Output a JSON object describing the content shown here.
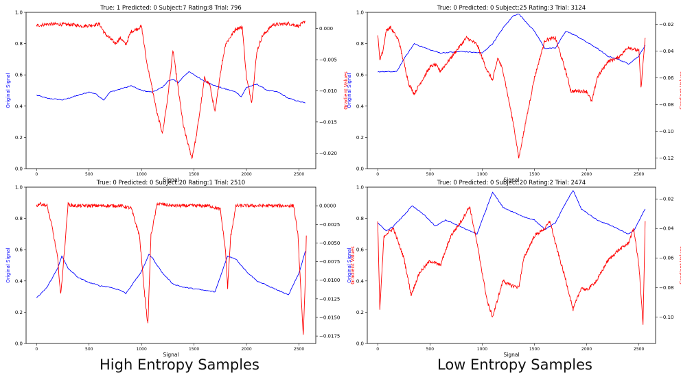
{
  "captions": {
    "left": "High Entropy Samples",
    "right": "Low Entropy Samples"
  },
  "colors": {
    "signal": "#0000ff",
    "gradient": "#ff0000",
    "axis": "#000000"
  },
  "chart_data": [
    {
      "type": "line",
      "title": "True: 1 Predicted: 0 Subject:7 Rating:8 Trial: 796",
      "xlabel": "Signal",
      "ylabel_left": "Original Signal",
      "ylabel_right": "Gradient Values",
      "xlim": [
        -100,
        2660
      ],
      "ylim_left": [
        0.0,
        1.0
      ],
      "ylim_right": [
        -0.0225,
        0.0026
      ],
      "xticks": [
        0,
        500,
        1000,
        1500,
        2000,
        2500
      ],
      "yticks_left": [
        0.0,
        0.2,
        0.4,
        0.6,
        0.8,
        1.0
      ],
      "yticks_left_labels": [
        "0.0",
        "0.2",
        "0.4",
        "0.6",
        "0.8",
        "1.0"
      ],
      "yticks_right": [
        0.0,
        -0.005,
        -0.01,
        -0.015,
        -0.02
      ],
      "yticks_right_labels": [
        "0.000",
        "−0.005",
        "−0.010",
        "−0.015",
        "−0.020"
      ],
      "series": [
        {
          "axis": "left",
          "x": [
            0,
            100,
            250,
            400,
            500,
            560,
            600,
            640,
            700,
            800,
            900,
            1000,
            1100,
            1200,
            1250,
            1300,
            1350,
            1400,
            1450,
            1500,
            1600,
            1700,
            1800,
            1900,
            1950,
            2000,
            2100,
            2200,
            2300,
            2400,
            2500,
            2560
          ],
          "y": [
            0.47,
            0.45,
            0.44,
            0.47,
            0.49,
            0.48,
            0.46,
            0.44,
            0.49,
            0.51,
            0.53,
            0.5,
            0.49,
            0.52,
            0.56,
            0.57,
            0.55,
            0.59,
            0.62,
            0.6,
            0.56,
            0.53,
            0.51,
            0.49,
            0.46,
            0.52,
            0.54,
            0.5,
            0.49,
            0.45,
            0.43,
            0.42
          ]
        },
        {
          "axis": "right",
          "x": [
            0,
            100,
            200,
            350,
            450,
            600,
            650,
            700,
            750,
            800,
            850,
            900,
            1000,
            1050,
            1100,
            1150,
            1200,
            1250,
            1300,
            1350,
            1400,
            1450,
            1480,
            1520,
            1600,
            1650,
            1700,
            1750,
            1800,
            1900,
            1960,
            2000,
            2050,
            2100,
            2150,
            2250,
            2400,
            2500,
            2540,
            2560
          ],
          "y": [
            0.0005,
            0.0007,
            0.0007,
            0.0006,
            0.0004,
            0.0007,
            -0.0008,
            -0.0016,
            -0.0024,
            -0.0015,
            -0.0026,
            -0.0005,
            0.0003,
            -0.0055,
            -0.0095,
            -0.0138,
            -0.0168,
            -0.011,
            -0.0035,
            -0.0098,
            -0.0158,
            -0.019,
            -0.0208,
            -0.0175,
            -0.008,
            -0.009,
            -0.0135,
            -0.0072,
            -0.0025,
            0.0,
            0.0002,
            -0.008,
            -0.0118,
            -0.0036,
            -0.0012,
            0.0006,
            0.0008,
            0.0004,
            0.0009,
            0.0012
          ]
        }
      ]
    },
    {
      "type": "line",
      "title": "True: 0 Predicted: 0 Subject:25 Rating:3 Trial: 3124",
      "xlabel": "Signal",
      "ylabel_left": "Original Signal",
      "ylabel_right": "Gradient Values",
      "xlim": [
        -100,
        2660
      ],
      "ylim_left": [
        0.0,
        1.0
      ],
      "ylim_right": [
        -0.128,
        -0.011
      ],
      "xticks": [
        0,
        500,
        1000,
        1500,
        2000,
        2500
      ],
      "yticks_left": [
        0.0,
        0.2,
        0.4,
        0.6,
        0.8,
        1.0
      ],
      "yticks_left_labels": [
        "0.0",
        "0.2",
        "0.4",
        "0.6",
        "0.8",
        "1.0"
      ],
      "yticks_right": [
        -0.02,
        -0.04,
        -0.06,
        -0.08,
        -0.1,
        -0.12
      ],
      "yticks_right_labels": [
        "−0.02",
        "−0.04",
        "−0.06",
        "−0.08",
        "−0.10",
        "−0.12"
      ],
      "series": [
        {
          "axis": "left",
          "x": [
            0,
            100,
            180,
            250,
            350,
            500,
            600,
            800,
            1000,
            1100,
            1200,
            1300,
            1350,
            1500,
            1600,
            1700,
            1800,
            1900,
            2000,
            2100,
            2200,
            2300,
            2400,
            2500,
            2560
          ],
          "y": [
            0.62,
            0.62,
            0.62,
            0.7,
            0.8,
            0.76,
            0.74,
            0.75,
            0.74,
            0.8,
            0.9,
            0.98,
            0.99,
            0.88,
            0.77,
            0.77,
            0.88,
            0.85,
            0.81,
            0.77,
            0.72,
            0.7,
            0.67,
            0.72,
            0.79
          ]
        },
        {
          "axis": "right",
          "x": [
            0,
            20,
            50,
            80,
            120,
            200,
            300,
            350,
            400,
            500,
            550,
            600,
            700,
            800,
            850,
            950,
            1050,
            1100,
            1150,
            1200,
            1300,
            1350,
            1400,
            1500,
            1600,
            1700,
            1800,
            1850,
            2000,
            2050,
            2100,
            2200,
            2300,
            2400,
            2500,
            2520,
            2560
          ],
          "y": [
            -0.028,
            -0.046,
            -0.04,
            -0.025,
            -0.022,
            -0.032,
            -0.065,
            -0.072,
            -0.065,
            -0.052,
            -0.05,
            -0.055,
            -0.045,
            -0.035,
            -0.03,
            -0.035,
            -0.055,
            -0.062,
            -0.045,
            -0.055,
            -0.095,
            -0.12,
            -0.1,
            -0.06,
            -0.032,
            -0.03,
            -0.055,
            -0.07,
            -0.07,
            -0.078,
            -0.06,
            -0.048,
            -0.045,
            -0.037,
            -0.04,
            -0.068,
            -0.03
          ]
        }
      ]
    },
    {
      "type": "line",
      "title": "True: 0 Predicted: 0 Subject:20 Rating:1 Trial: 2510",
      "xlabel": "Signal",
      "ylabel_left": "Original Signal",
      "ylabel_right": "Gradient Values",
      "xlim": [
        -100,
        2660
      ],
      "ylim_left": [
        0.0,
        1.0
      ],
      "ylim_right": [
        -0.0185,
        0.0025
      ],
      "xticks": [
        0,
        500,
        1000,
        1500,
        2000,
        2500
      ],
      "yticks_left": [
        0.0,
        0.2,
        0.4,
        0.6,
        0.8,
        1.0
      ],
      "yticks_left_labels": [
        "0.0",
        "0.2",
        "0.4",
        "0.6",
        "0.8",
        "1.0"
      ],
      "yticks_right": [
        0.0,
        -0.0025,
        -0.005,
        -0.0075,
        -0.01,
        -0.0125,
        -0.015,
        -0.0175
      ],
      "yticks_right_labels": [
        "0.0000",
        "−0.0025",
        "−0.0050",
        "−0.0075",
        "−0.0100",
        "−0.0125",
        "−0.0150",
        "−0.0175"
      ],
      "series": [
        {
          "axis": "left",
          "x": [
            0,
            100,
            200,
            240,
            300,
            400,
            500,
            600,
            700,
            800,
            850,
            1000,
            1070,
            1100,
            1200,
            1300,
            1400,
            1500,
            1600,
            1700,
            1820,
            1900,
            2000,
            2100,
            2200,
            2300,
            2400,
            2500,
            2560
          ],
          "y": [
            0.29,
            0.36,
            0.48,
            0.56,
            0.48,
            0.42,
            0.39,
            0.37,
            0.36,
            0.34,
            0.32,
            0.46,
            0.57,
            0.55,
            0.45,
            0.38,
            0.36,
            0.35,
            0.34,
            0.33,
            0.56,
            0.54,
            0.46,
            0.4,
            0.37,
            0.34,
            0.31,
            0.45,
            0.59
          ]
        },
        {
          "axis": "right",
          "x": [
            0,
            30,
            100,
            150,
            200,
            230,
            260,
            300,
            350,
            500,
            800,
            900,
            980,
            1030,
            1060,
            1090,
            1150,
            1300,
            1500,
            1650,
            1750,
            1800,
            1820,
            1850,
            1900,
            2000,
            2200,
            2450,
            2490,
            2520,
            2540,
            2560,
            2570
          ],
          "y": [
            0.0,
            0.0003,
            0.0,
            -0.003,
            -0.007,
            -0.012,
            -0.007,
            0.0002,
            0.0,
            0.0,
            0.0,
            -0.0003,
            -0.004,
            -0.012,
            -0.016,
            -0.004,
            0.0003,
            0.0,
            0.0,
            0.0,
            -0.0005,
            -0.006,
            -0.011,
            -0.004,
            0.0,
            0.0,
            0.0,
            0.0,
            -0.004,
            -0.012,
            -0.0175,
            -0.01,
            -0.004
          ]
        }
      ]
    },
    {
      "type": "line",
      "title": "True: 0 Predicted: 0 Subject:20 Rating:2 Trial: 2474",
      "xlabel": "Signal",
      "ylabel_left": "Original Signal",
      "ylabel_right": "Gradient Values",
      "xlim": [
        -100,
        2660
      ],
      "ylim_left": [
        0.0,
        1.0
      ],
      "ylim_right": [
        -0.118,
        -0.012
      ],
      "xticks": [
        0,
        500,
        1000,
        1500,
        2000,
        2500
      ],
      "yticks_left": [
        0.0,
        0.2,
        0.4,
        0.6,
        0.8,
        1.0
      ],
      "yticks_left_labels": [
        "0.0",
        "0.2",
        "0.4",
        "0.6",
        "0.8",
        "1.0"
      ],
      "yticks_right": [
        -0.02,
        -0.04,
        -0.06,
        -0.08,
        -0.1
      ],
      "yticks_right_labels": [
        "−0.02",
        "−0.04",
        "−0.06",
        "−0.08",
        "−0.10"
      ],
      "series": [
        {
          "axis": "left",
          "x": [
            0,
            80,
            150,
            250,
            330,
            450,
            550,
            650,
            750,
            850,
            950,
            1050,
            1100,
            1200,
            1300,
            1400,
            1500,
            1600,
            1700,
            1800,
            1870,
            1950,
            2100,
            2250,
            2400,
            2450,
            2560
          ],
          "y": [
            0.77,
            0.72,
            0.75,
            0.82,
            0.88,
            0.82,
            0.75,
            0.79,
            0.76,
            0.73,
            0.7,
            0.88,
            0.97,
            0.87,
            0.84,
            0.81,
            0.79,
            0.73,
            0.77,
            0.9,
            0.98,
            0.86,
            0.79,
            0.75,
            0.7,
            0.72,
            0.86
          ]
        },
        {
          "axis": "right",
          "x": [
            0,
            20,
            60,
            150,
            250,
            320,
            400,
            500,
            600,
            700,
            800,
            880,
            950,
            1050,
            1100,
            1200,
            1250,
            1350,
            1400,
            1500,
            1600,
            1650,
            1700,
            1800,
            1870,
            1950,
            2000,
            2100,
            2200,
            2300,
            2400,
            2450,
            2500,
            2540,
            2560
          ],
          "y": [
            -0.035,
            -0.095,
            -0.045,
            -0.04,
            -0.06,
            -0.085,
            -0.07,
            -0.062,
            -0.065,
            -0.045,
            -0.035,
            -0.025,
            -0.05,
            -0.09,
            -0.1,
            -0.075,
            -0.078,
            -0.08,
            -0.06,
            -0.045,
            -0.04,
            -0.035,
            -0.05,
            -0.075,
            -0.095,
            -0.08,
            -0.082,
            -0.075,
            -0.062,
            -0.055,
            -0.05,
            -0.04,
            -0.065,
            -0.105,
            -0.035
          ]
        }
      ]
    }
  ]
}
